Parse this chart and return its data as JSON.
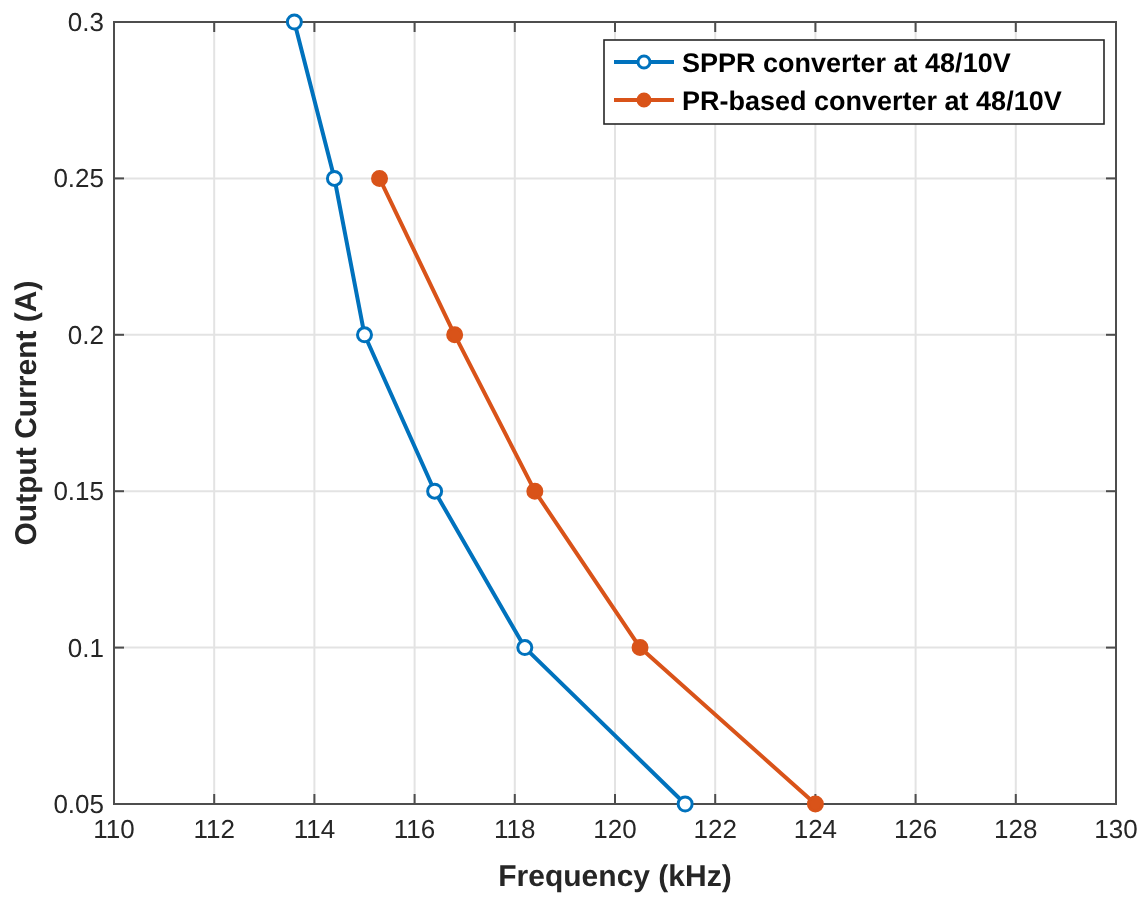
{
  "chart_data": {
    "type": "line",
    "xlabel": "Frequency (kHz)",
    "ylabel": "Output Current (A)",
    "xlim": [
      110,
      130
    ],
    "xticks": [
      110,
      112,
      114,
      116,
      118,
      120,
      122,
      124,
      126,
      128,
      130
    ],
    "ylim": [
      0.05,
      0.3
    ],
    "yticks": [
      0.05,
      0.1,
      0.15,
      0.2,
      0.25,
      0.3
    ],
    "grid": true,
    "legend": "top right",
    "marker": "circle",
    "line_style": "solid",
    "series": [
      {
        "name": "SPPR converter at 48/10V",
        "color": "#0072bd",
        "x": [
          113.6,
          114.4,
          115,
          116.4,
          118.2,
          121.4
        ],
        "values": [
          0.3,
          0.25,
          0.2,
          0.15,
          0.1,
          0.05
        ]
      },
      {
        "name": "PR-based converter at 48/10V",
        "color": "#d95319",
        "x": [
          115.3,
          116.8,
          118.4,
          120.5,
          124
        ],
        "values": [
          0.25,
          0.2,
          0.15,
          0.1,
          0.05
        ]
      }
    ]
  }
}
